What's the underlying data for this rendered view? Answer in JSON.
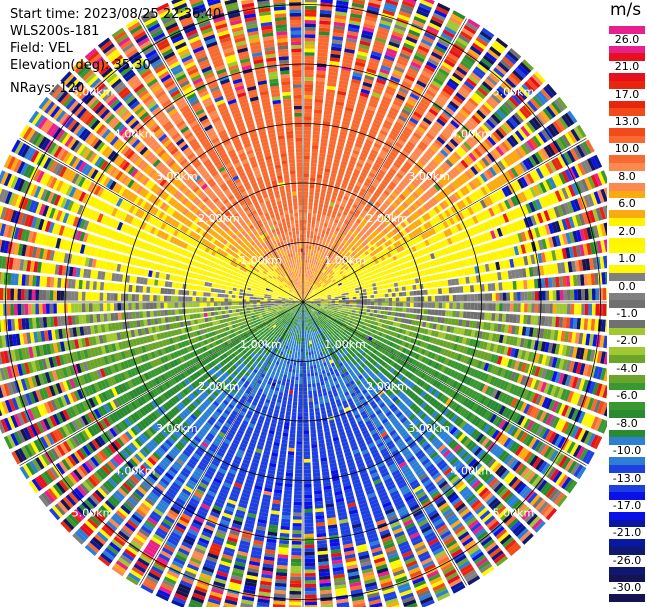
{
  "header": {
    "start_time": "Start time: 2023/08/25 22:36:40",
    "station": "WLS200s-181",
    "field": "Field: VEL",
    "elevation": "Elevation(deg): 35.30",
    "nrays": "NRays: 120"
  },
  "chart_data": {
    "type": "heatmap",
    "projection": "polar-ppi",
    "field": "VEL",
    "n_rays": 120,
    "max_range_km": 5.5,
    "range_rings_km": [
      1.0,
      2.0,
      3.0,
      4.0,
      5.0
    ],
    "ring_labels": [
      "1.00km",
      "2.00km",
      "3.00km",
      "4.00km",
      "5.00km"
    ],
    "radial_lines_deg": [
      0,
      30,
      60,
      90,
      120,
      150,
      180,
      210,
      240,
      270,
      300,
      330
    ],
    "pattern_summary": "Positive (receding) velocity 8-17 m/s to the north, near-zero along east-west axis, negative (approaching) velocity -4 to -13 m/s to the south, noisy values beyond ~4 km",
    "colorbar": {
      "unit": "m/s",
      "levels": [
        {
          "label": "26.0",
          "color": "#e8208c"
        },
        {
          "label": "21.0",
          "color": "#e8101e"
        },
        {
          "label": "17.0",
          "color": "#e8260e"
        },
        {
          "label": "13.0",
          "color": "#f24a18"
        },
        {
          "label": "10.0",
          "color": "#f86a30"
        },
        {
          "label": "8.0",
          "color": "#fc8a50"
        },
        {
          "label": "6.0",
          "color": "#fbaa10"
        },
        {
          "label": "2.0",
          "color": "#fff400"
        },
        {
          "label": "1.0",
          "color": "#fff800"
        },
        {
          "label": "0.0",
          "color": "#808080"
        },
        {
          "label": "-1.0",
          "color": "#707070"
        },
        {
          "label": "-2.0",
          "color": "#a0c830"
        },
        {
          "label": "-4.0",
          "color": "#6aa428"
        },
        {
          "label": "-6.0",
          "color": "#3a9830"
        },
        {
          "label": "-8.0",
          "color": "#2a8a30"
        },
        {
          "label": "-10.0",
          "color": "#2c7fd4"
        },
        {
          "label": "-13.0",
          "color": "#1e40e0"
        },
        {
          "label": "-17.0",
          "color": "#0a10e8"
        },
        {
          "label": "-21.0",
          "color": "#0818a0"
        },
        {
          "label": "-26.0",
          "color": "#101870"
        },
        {
          "label": "-30.0",
          "color": "#141452"
        }
      ]
    }
  }
}
